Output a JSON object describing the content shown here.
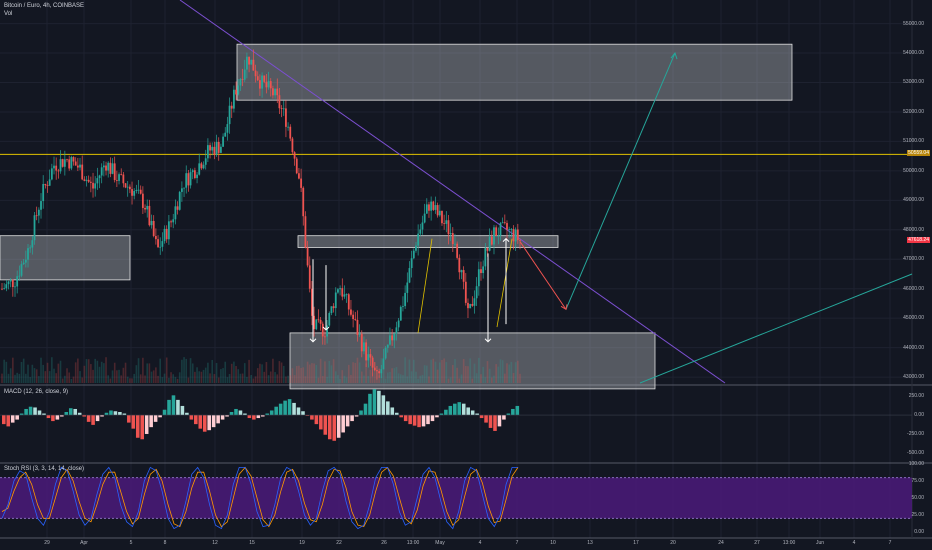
{
  "header": {
    "symbol": "Bitcoin / Euro, 4h, COINBASE",
    "volume_label": "Vol",
    "macd_label": "MACD (12, 26, close, 9)",
    "stoch_label": "Stoch RSI (3, 3, 14, 14, close)"
  },
  "chart_data": [
    {
      "type": "candlestick",
      "pane": "price",
      "y_ticks": [
        "55000.00",
        "54000.00",
        "53000.00",
        "52000.00",
        "51000.00",
        "50000.00",
        "49000.00",
        "48000.00",
        "47000.00",
        "46000.00",
        "45000.00",
        "44000.00",
        "43000.00"
      ],
      "ylim": [
        42800,
        55800
      ],
      "price_tags": [
        {
          "label": "50559.04",
          "value": 50559,
          "color": "#b8860b"
        },
        {
          "label": "47618.24",
          "value": 47618,
          "color": "#f23645"
        }
      ],
      "horizontal_line": {
        "value": 50559,
        "color": "#e1c200"
      },
      "zones": [
        {
          "from": "14",
          "to": "13",
          "top": 54300,
          "bottom": 52400
        },
        {
          "from": "start",
          "to": "8",
          "top": 47800,
          "bottom": 46300
        },
        {
          "from": "18",
          "to": "17",
          "top": 47800,
          "bottom": 47400
        },
        {
          "from": "18",
          "to": "19",
          "top": 44500,
          "bottom": 42600
        }
      ],
      "close_path": [
        46000,
        46300,
        47300,
        49100,
        50200,
        50400,
        50100,
        49400,
        50300,
        49700,
        49400,
        48900,
        47300,
        48200,
        49600,
        50100,
        50700,
        50900,
        52700,
        53900,
        53000,
        52600,
        51700,
        49700,
        44700,
        44600,
        46200,
        45100,
        43900,
        42900,
        44200,
        45600,
        47700,
        48900,
        48300,
        47700,
        45000,
        46800,
        47900,
        48000,
        47650
      ],
      "trendline_desc": {
        "from_value": 55800,
        "to_value": 42800
      },
      "trendline_rising": {
        "from_value": 42800,
        "to_value": 46500
      },
      "projections": [
        {
          "from_value": 47600,
          "to_value": 45300
        },
        {
          "from_value": 45300,
          "to_value": 54000
        }
      ]
    },
    {
      "type": "histogram",
      "pane": "macd",
      "y_ticks": [
        "250.00",
        "0.00",
        "-250.00",
        "-500.00"
      ],
      "ylim": [
        -620,
        370
      ],
      "values": [
        -120,
        -150,
        -100,
        -60,
        20,
        80,
        110,
        100,
        60,
        20,
        -40,
        -80,
        -60,
        -20,
        40,
        90,
        80,
        30,
        -20,
        -90,
        -130,
        -80,
        -20,
        30,
        60,
        50,
        40,
        20,
        -100,
        -180,
        -300,
        -320,
        -250,
        -160,
        -90,
        -30,
        70,
        200,
        260,
        200,
        120,
        30,
        -60,
        -120,
        -180,
        -220,
        -200,
        -160,
        -110,
        -60,
        -20,
        40,
        80,
        60,
        20,
        -40,
        -60,
        -40,
        -20,
        20,
        60,
        110,
        150,
        190,
        210,
        160,
        100,
        50,
        -10,
        -60,
        -120,
        -190,
        -260,
        -320,
        -340,
        -300,
        -230,
        -150,
        -80,
        -20,
        60,
        150,
        280,
        340,
        320,
        260,
        180,
        100,
        30,
        -30,
        -80,
        -120,
        -140,
        -160,
        -150,
        -120,
        -80,
        -30,
        20,
        70,
        120,
        150,
        170,
        150,
        100,
        60,
        20,
        -40,
        -100,
        -170,
        -210,
        -150,
        -60,
        20,
        80,
        120
      ]
    },
    {
      "type": "line",
      "pane": "stoch_rsi",
      "y_ticks": [
        "100.00",
        "75.00",
        "50.00",
        "25.00",
        "0.00"
      ],
      "ylim": [
        0,
        100
      ],
      "band": [
        20,
        80
      ],
      "k_values": [
        20,
        40,
        75,
        90,
        85,
        50,
        20,
        10,
        30,
        70,
        95,
        90,
        60,
        25,
        10,
        20,
        55,
        85,
        95,
        80,
        40,
        15,
        8,
        30,
        75,
        95,
        90,
        60,
        20,
        5,
        10,
        45,
        85,
        95,
        80,
        40,
        10,
        5,
        25,
        70,
        95,
        95,
        70,
        30,
        8,
        10,
        40,
        80,
        95,
        90,
        60,
        25,
        10,
        20,
        60,
        90,
        95,
        85,
        45,
        15,
        5,
        10,
        40,
        80,
        95,
        95,
        70,
        30,
        10,
        15,
        50,
        85,
        95,
        80,
        45,
        15,
        5,
        30,
        75,
        95,
        90,
        55,
        20,
        8,
        25,
        70,
        95,
        95
      ],
      "d_values": [
        30,
        35,
        60,
        80,
        88,
        70,
        40,
        20,
        20,
        50,
        80,
        92,
        75,
        45,
        20,
        15,
        40,
        70,
        88,
        88,
        60,
        30,
        12,
        20,
        55,
        85,
        92,
        75,
        40,
        12,
        8,
        30,
        65,
        88,
        88,
        60,
        25,
        8,
        15,
        50,
        85,
        95,
        82,
        50,
        18,
        8,
        25,
        60,
        88,
        92,
        75,
        42,
        18,
        15,
        40,
        75,
        92,
        90,
        65,
        30,
        10,
        8,
        25,
        60,
        88,
        95,
        82,
        50,
        20,
        12,
        32,
        68,
        90,
        88,
        62,
        30,
        10,
        18,
        52,
        85,
        92,
        72,
        38,
        14,
        16,
        48,
        82,
        95
      ]
    }
  ],
  "x_axis": [
    "29",
    "Apr",
    "5",
    "8",
    "12",
    "15",
    "19",
    "22",
    "26",
    "13:00",
    "May",
    "4",
    "7",
    "10",
    "13",
    "17",
    "20",
    "24",
    "27",
    "13:00",
    "Jun",
    "4",
    "7"
  ]
}
